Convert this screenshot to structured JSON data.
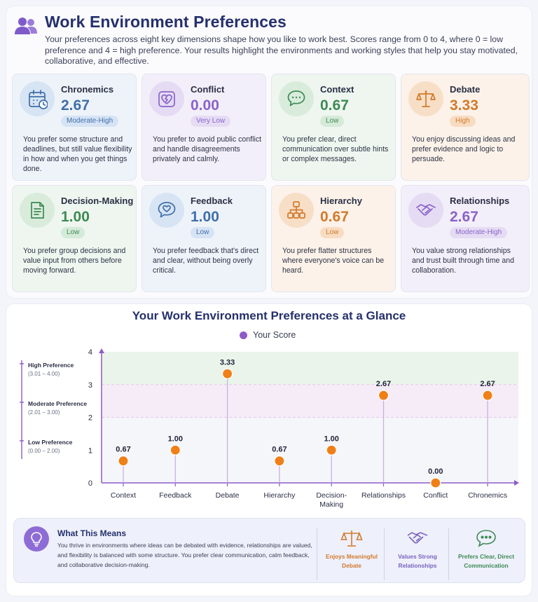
{
  "header": {
    "title": "Work Environment Preferences",
    "intro": "Your preferences across eight key dimensions shape how you like to work best. Scores range from 0 to 4, where 0 = low preference and 4 = high preference. Your results highlight the environments and working styles that help you stay motivated, collaborative, and effective."
  },
  "cards": [
    {
      "name": "Chronemics",
      "score": "2.67",
      "level": "Moderate-High",
      "desc": "You prefer some structure and deadlines, but still value flexibility in how and when you get things done.",
      "icon": "calendar-icon",
      "accent": "#3f6fa8",
      "bg": "#eef3fa",
      "iconbg": "#d7e4f4",
      "badgebg": "#d6e3f5"
    },
    {
      "name": "Conflict",
      "score": "0.00",
      "level": "Very Low",
      "desc": "You prefer to avoid public conflict and handle disagreements privately and calmly.",
      "icon": "heart-puzzle-icon",
      "accent": "#8a63c9",
      "bg": "#f3effa",
      "iconbg": "#e5dcf4",
      "badgebg": "#e5dcf4"
    },
    {
      "name": "Context",
      "score": "0.67",
      "level": "Low",
      "desc": "You prefer clear, direct communication over subtle hints or complex messages.",
      "icon": "chat-bubble-icon",
      "accent": "#3e8a55",
      "bg": "#eef6ef",
      "iconbg": "#d9ecdc",
      "badgebg": "#d5ead9"
    },
    {
      "name": "Debate",
      "score": "3.33",
      "level": "High",
      "desc": "You enjoy discussing ideas and prefer evidence and logic to persuade.",
      "icon": "scales-icon",
      "accent": "#d27a2c",
      "bg": "#fcf2e9",
      "iconbg": "#f7dfc7",
      "badgebg": "#f8dcc2"
    },
    {
      "name": "Decision-Making",
      "score": "1.00",
      "level": "Low",
      "desc": "You prefer group decisions and value input from others before moving forward.",
      "icon": "document-icon",
      "accent": "#3e8a55",
      "bg": "#eef6ef",
      "iconbg": "#d9ecdc",
      "badgebg": "#d5ead9"
    },
    {
      "name": "Feedback",
      "score": "1.00",
      "level": "Low",
      "desc": "You prefer feedback that's direct and clear, without being overly critical.",
      "icon": "heart-chat-icon",
      "accent": "#3f6fa8",
      "bg": "#eef3fa",
      "iconbg": "#d7e4f4",
      "badgebg": "#d6e3f5"
    },
    {
      "name": "Hierarchy",
      "score": "0.67",
      "level": "Low",
      "desc": "You prefer flatter structures where everyone's voice can be heard.",
      "icon": "org-chart-icon",
      "accent": "#d27a2c",
      "bg": "#fcf2e9",
      "iconbg": "#f7dfc7",
      "badgebg": "#f8dcc2"
    },
    {
      "name": "Relationships",
      "score": "2.67",
      "level": "Moderate-High",
      "desc": "You value strong relationships and trust built through time and collaboration.",
      "icon": "handshake-icon",
      "accent": "#8a63c9",
      "bg": "#f3effa",
      "iconbg": "#e5dcf4",
      "badgebg": "#e5dcf4"
    }
  ],
  "chart": {
    "title": "Your Work Environment Preferences at a Glance",
    "legend": "Your Score",
    "bands": [
      {
        "label": "High Preference",
        "range": "(3.01 – 4.00)"
      },
      {
        "label": "Moderate Preference",
        "range": "(2.01 – 3.00)"
      },
      {
        "label": "Low Preference",
        "range": "(0.00 – 2.00)"
      }
    ]
  },
  "chart_data": {
    "type": "scatter",
    "title": "Your Work Environment Preferences at a Glance",
    "categories": [
      "Context",
      "Feedback",
      "Debate",
      "Hierarchy",
      "Decision-Making",
      "Relationships",
      "Conflict",
      "Chronemics"
    ],
    "series": [
      {
        "name": "Your Score",
        "values": [
          0.67,
          1.0,
          3.33,
          0.67,
          1.0,
          2.67,
          0.0,
          2.67
        ]
      }
    ],
    "data_labels": [
      "0.67",
      "1.00",
      "3.33",
      "0.67",
      "1.00",
      "2.67",
      "0.00",
      "2.67"
    ],
    "yticks": [
      0,
      1,
      2,
      3,
      4
    ],
    "ylim": [
      0,
      4
    ],
    "bands": [
      {
        "label": "High Preference",
        "from": 3,
        "to": 4,
        "color": "#eaf4ea"
      },
      {
        "label": "Moderate Preference",
        "from": 2,
        "to": 3,
        "color": "#f5ecf7"
      },
      {
        "label": "Low Preference",
        "from": 0,
        "to": 2,
        "color": "#f5f6fa"
      }
    ],
    "marker_color": "#f07f17",
    "stem_color": "#c9b0e0",
    "axis_color": "#8d5bc7",
    "legend_position": "top-center"
  },
  "summary": {
    "heading": "What This Means",
    "text": "You thrive in environments where ideas can be debated with evidence, relationships are valued, and flexibility is balanced with some structure. You prefer clear communication, calm feedback, and collaborative decision-making.",
    "highlights": [
      {
        "label": "Enjoys Meaningful Debate",
        "icon": "scales-icon",
        "color": "#d27a2c"
      },
      {
        "label": "Values Strong Relationships",
        "icon": "handshake-icon",
        "color": "#7b63c0"
      },
      {
        "label": "Prefers Clear, Direct Communication",
        "icon": "chat-bubble-icon",
        "color": "#3e8a55"
      }
    ]
  }
}
